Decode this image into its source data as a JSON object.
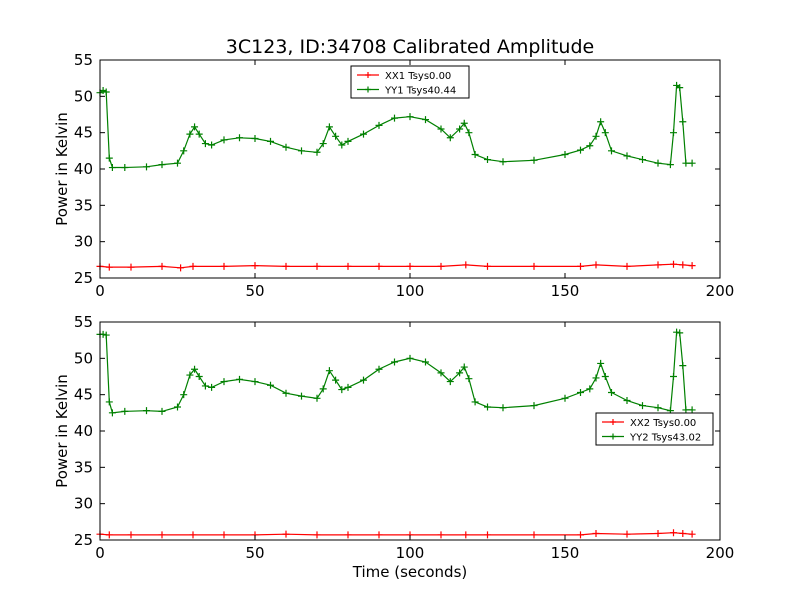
{
  "figure": {
    "title": "3C123, ID:34708 Calibrated Amplitude",
    "xlabel": "Time (seconds)"
  },
  "chart_data": [
    {
      "type": "line",
      "title": "3C123, ID:34708 Calibrated Amplitude",
      "xlabel": "",
      "ylabel": "Power in Kelvin",
      "xlim": [
        0,
        200
      ],
      "ylim": [
        25,
        55
      ],
      "xticks": [
        0,
        50,
        100,
        150,
        200
      ],
      "yticks": [
        25,
        30,
        35,
        40,
        45,
        50,
        55
      ],
      "grid": false,
      "legend_position": "top-center",
      "series": [
        {
          "name": "XX1 Tsys0.00",
          "color": "#ff0000",
          "marker": "plus",
          "x": [
            0,
            3,
            10,
            20,
            26,
            30,
            40,
            50,
            60,
            70,
            80,
            90,
            100,
            110,
            118,
            125,
            140,
            155,
            160,
            170,
            180,
            185,
            188,
            191
          ],
          "y": [
            26.6,
            26.5,
            26.5,
            26.6,
            26.4,
            26.6,
            26.6,
            26.7,
            26.6,
            26.6,
            26.6,
            26.6,
            26.6,
            26.6,
            26.8,
            26.6,
            26.6,
            26.6,
            26.8,
            26.6,
            26.8,
            26.9,
            26.8,
            26.7
          ]
        },
        {
          "name": "YY1 Tsys40.44",
          "color": "#008000",
          "marker": "plus",
          "x": [
            0,
            1,
            2,
            3,
            4,
            8,
            15,
            20,
            25,
            27,
            29,
            30.5,
            32,
            34,
            36,
            40,
            45,
            50,
            55,
            60,
            65,
            70,
            72,
            74,
            76,
            78,
            80,
            85,
            90,
            95,
            100,
            105,
            110,
            113,
            116,
            117.5,
            119,
            121,
            125,
            130,
            140,
            150,
            155,
            158,
            160,
            161.5,
            163,
            165,
            170,
            175,
            180,
            184,
            185,
            186,
            187,
            188,
            189,
            191
          ],
          "y": [
            50.5,
            50.8,
            50.6,
            41.5,
            40.2,
            40.2,
            40.3,
            40.6,
            40.8,
            42.5,
            44.8,
            45.8,
            44.8,
            43.5,
            43.3,
            44.0,
            44.3,
            44.2,
            43.8,
            43.0,
            42.5,
            42.3,
            43.5,
            45.8,
            44.5,
            43.3,
            43.8,
            44.8,
            46.0,
            47.0,
            47.2,
            46.8,
            45.5,
            44.3,
            45.5,
            46.3,
            45.0,
            42.0,
            41.3,
            41.0,
            41.2,
            42.0,
            42.6,
            43.2,
            44.5,
            46.5,
            45.0,
            42.5,
            41.8,
            41.3,
            40.8,
            40.6,
            45.0,
            51.5,
            51.2,
            46.5,
            40.8,
            40.8
          ]
        }
      ]
    },
    {
      "type": "line",
      "title": "",
      "xlabel": "Time (seconds)",
      "ylabel": "Power in Kelvin",
      "xlim": [
        0,
        200
      ],
      "ylim": [
        25,
        55
      ],
      "xticks": [
        0,
        50,
        100,
        150,
        200
      ],
      "yticks": [
        25,
        30,
        35,
        40,
        45,
        50,
        55
      ],
      "grid": false,
      "legend_position": "center-right",
      "series": [
        {
          "name": "XX2 Tsys0.00",
          "color": "#ff0000",
          "marker": "plus",
          "x": [
            0,
            3,
            10,
            20,
            30,
            40,
            50,
            60,
            70,
            80,
            90,
            100,
            110,
            118,
            125,
            140,
            155,
            160,
            170,
            180,
            185,
            188,
            191
          ],
          "y": [
            25.8,
            25.7,
            25.7,
            25.7,
            25.7,
            25.7,
            25.7,
            25.8,
            25.7,
            25.7,
            25.7,
            25.7,
            25.7,
            25.7,
            25.7,
            25.7,
            25.7,
            25.9,
            25.8,
            25.9,
            26.0,
            25.9,
            25.8
          ]
        },
        {
          "name": "YY2 Tsys43.02",
          "color": "#008000",
          "marker": "plus",
          "x": [
            0,
            1,
            2,
            3,
            4,
            8,
            15,
            20,
            25,
            27,
            29,
            30.5,
            32,
            34,
            36,
            40,
            45,
            50,
            55,
            60,
            65,
            70,
            72,
            74,
            76,
            78,
            80,
            85,
            90,
            95,
            100,
            105,
            110,
            113,
            116,
            117.5,
            119,
            121,
            125,
            130,
            140,
            150,
            155,
            158,
            160,
            161.5,
            163,
            165,
            170,
            175,
            180,
            184,
            185,
            186,
            187,
            188,
            189,
            191
          ],
          "y": [
            53.3,
            53.3,
            53.2,
            44.0,
            42.5,
            42.7,
            42.8,
            42.7,
            43.3,
            45.0,
            47.7,
            48.5,
            47.5,
            46.2,
            46.0,
            46.8,
            47.1,
            46.8,
            46.3,
            45.2,
            44.8,
            44.5,
            45.8,
            48.3,
            47.0,
            45.7,
            46.0,
            47.0,
            48.5,
            49.5,
            50.0,
            49.5,
            48.0,
            46.8,
            48.0,
            48.8,
            47.2,
            44.0,
            43.3,
            43.2,
            43.5,
            44.5,
            45.3,
            45.8,
            47.3,
            49.3,
            47.5,
            45.3,
            44.2,
            43.5,
            43.2,
            42.8,
            47.5,
            53.6,
            53.5,
            49.0,
            42.9,
            42.9
          ]
        }
      ]
    }
  ]
}
